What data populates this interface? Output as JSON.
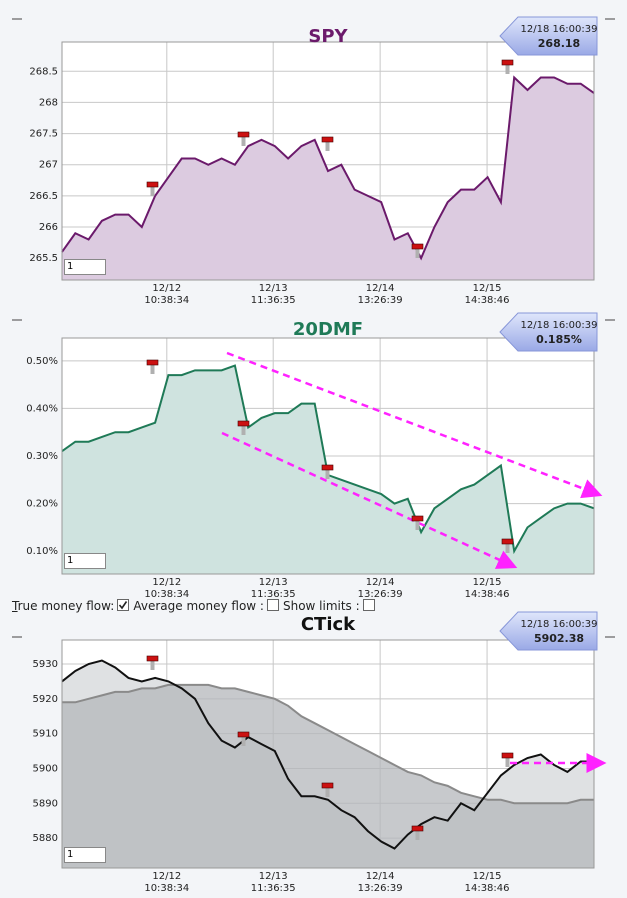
{
  "chart_data": [
    {
      "type": "line",
      "title": "SPY",
      "last_time": "12/18 16:00:39",
      "last_label": "268.18",
      "input_value": "1",
      "x": [
        0,
        2.5,
        5,
        7.5,
        10,
        12.5,
        15,
        17.5,
        20,
        22.5,
        25,
        27.5,
        30,
        32.5,
        35,
        37.5,
        40,
        42.5,
        45,
        47.5,
        50,
        52.5,
        55,
        57.5,
        60,
        62.5,
        65,
        67.5,
        70,
        72.5,
        75,
        77.5,
        80,
        82.5,
        85,
        87.5,
        90,
        92.5,
        95,
        97.5,
        100
      ],
      "xlim": [
        0,
        100
      ],
      "xticks": [
        {
          "value": 19.7,
          "label": "12/12\n10:38:34"
        },
        {
          "value": 39.7,
          "label": "12/13\n11:36:35"
        },
        {
          "value": 59.8,
          "label": "12/14\n13:26:39"
        },
        {
          "value": 79.9,
          "label": "12/15\n14:38:46"
        }
      ],
      "ylim": [
        265.15,
        268.97
      ],
      "yticks": [
        265.5,
        266,
        266.5,
        267,
        267.5,
        268,
        268.5
      ],
      "grid": true,
      "series": [
        {
          "name": "SPY",
          "color": "#6b1a6b",
          "fill": "#dccbe0",
          "values": [
            265.6,
            265.9,
            265.8,
            266.1,
            266.2,
            266.2,
            266.0,
            266.5,
            266.8,
            267.1,
            267.1,
            267.0,
            267.1,
            267.0,
            267.3,
            267.4,
            267.3,
            267.1,
            267.3,
            267.4,
            266.9,
            267.0,
            266.6,
            266.5,
            266.4,
            265.8,
            265.9,
            265.5,
            266.0,
            266.4,
            266.6,
            266.6,
            266.8,
            266.4,
            268.4,
            268.2,
            268.4,
            268.4,
            268.3,
            268.3,
            268.15
          ]
        }
      ]
    },
    {
      "type": "line",
      "title": "20DMF",
      "last_time": "12/18 16:00:39",
      "last_label": "0.185%",
      "input_value": "1",
      "x": [
        0,
        2.5,
        5,
        7.5,
        10,
        12.5,
        15,
        17.5,
        20,
        22.5,
        25,
        27.5,
        30,
        32.5,
        35,
        37.5,
        40,
        42.5,
        45,
        47.5,
        50,
        52.5,
        55,
        57.5,
        60,
        62.5,
        65,
        67.5,
        70,
        72.5,
        75,
        77.5,
        80,
        82.5,
        85,
        87.5,
        90,
        92.5,
        95,
        97.5,
        100
      ],
      "xlim": [
        0,
        100
      ],
      "xticks": [
        {
          "value": 19.7,
          "label": "12/12\n10:38:34"
        },
        {
          "value": 39.7,
          "label": "12/13\n11:36:35"
        },
        {
          "value": 59.8,
          "label": "12/14\n13:26:39"
        },
        {
          "value": 79.9,
          "label": "12/15\n14:38:46"
        }
      ],
      "ylim": [
        0.052,
        0.548
      ],
      "yticks": [
        {
          "value": 0.1,
          "label": "0.10%"
        },
        {
          "value": 0.2,
          "label": "0.20%"
        },
        {
          "value": 0.3,
          "label": "0.30%"
        },
        {
          "value": 0.4,
          "label": "0.40%"
        },
        {
          "value": 0.5,
          "label": "0.50%"
        }
      ],
      "grid": true,
      "series": [
        {
          "name": "20DMF",
          "color": "#1f7a57",
          "fill": "#cfe3df",
          "values": [
            0.31,
            0.33,
            0.33,
            0.34,
            0.35,
            0.35,
            0.36,
            0.37,
            0.47,
            0.47,
            0.48,
            0.48,
            0.48,
            0.49,
            0.36,
            0.38,
            0.39,
            0.39,
            0.41,
            0.41,
            0.26,
            0.25,
            0.24,
            0.23,
            0.22,
            0.2,
            0.21,
            0.14,
            0.19,
            0.21,
            0.23,
            0.24,
            0.26,
            0.28,
            0.1,
            0.15,
            0.17,
            0.19,
            0.2,
            0.2,
            0.19
          ]
        }
      ]
    },
    {
      "type": "line",
      "title": "CTick",
      "last_time": "12/18 16:00:39",
      "last_label": "5902.38",
      "input_value": "1",
      "x": [
        0,
        2.5,
        5,
        7.5,
        10,
        12.5,
        15,
        17.5,
        20,
        22.5,
        25,
        27.5,
        30,
        32.5,
        35,
        37.5,
        40,
        42.5,
        45,
        47.5,
        50,
        52.5,
        55,
        57.5,
        60,
        62.5,
        65,
        67.5,
        70,
        72.5,
        75,
        77.5,
        80,
        82.5,
        85,
        87.5,
        90,
        92.5,
        95,
        97.5,
        100
      ],
      "xlim": [
        0,
        100
      ],
      "xticks": [
        {
          "value": 19.7,
          "label": "12/12\n10:38:34"
        },
        {
          "value": 39.7,
          "label": "12/13\n11:36:35"
        },
        {
          "value": 59.8,
          "label": "12/14\n13:26:39"
        },
        {
          "value": 79.9,
          "label": "12/15\n14:38:46"
        }
      ],
      "ylim": [
        5871.4,
        5936.9
      ],
      "yticks": [
        5880,
        5890,
        5900,
        5910,
        5920,
        5930
      ],
      "grid": true,
      "series": [
        {
          "name": "CTick",
          "color": "#111111",
          "fill": "#dfe1e3",
          "values": [
            5925,
            5928,
            5930,
            5931,
            5929,
            5926,
            5925,
            5926,
            5925,
            5923,
            5920,
            5913,
            5908,
            5906,
            5909,
            5907,
            5905,
            5897,
            5892,
            5892,
            5891,
            5888,
            5886,
            5882,
            5879,
            5877,
            5881,
            5884,
            5886,
            5885,
            5890,
            5888,
            5893,
            5898,
            5901,
            5903,
            5904,
            5901,
            5899,
            5902,
            5902
          ]
        },
        {
          "name": "Average",
          "color": "#8a8a8a",
          "fill": "#b4b7bb",
          "values": [
            5919,
            5919,
            5920,
            5921,
            5922,
            5922,
            5923,
            5923,
            5924,
            5924,
            5924,
            5924,
            5923,
            5923,
            5922,
            5921,
            5920,
            5918,
            5915,
            5913,
            5911,
            5909,
            5907,
            5905,
            5903,
            5901,
            5899,
            5898,
            5896,
            5895,
            5893,
            5892,
            5891,
            5891,
            5890,
            5890,
            5890,
            5890,
            5890,
            5891,
            5891
          ]
        }
      ]
    }
  ],
  "controls": {
    "options": [
      {
        "label": "True money flow:",
        "checked": true
      },
      {
        "label": "Average money flow :",
        "checked": false
      },
      {
        "label": "Show limits :",
        "checked": false
      }
    ]
  }
}
